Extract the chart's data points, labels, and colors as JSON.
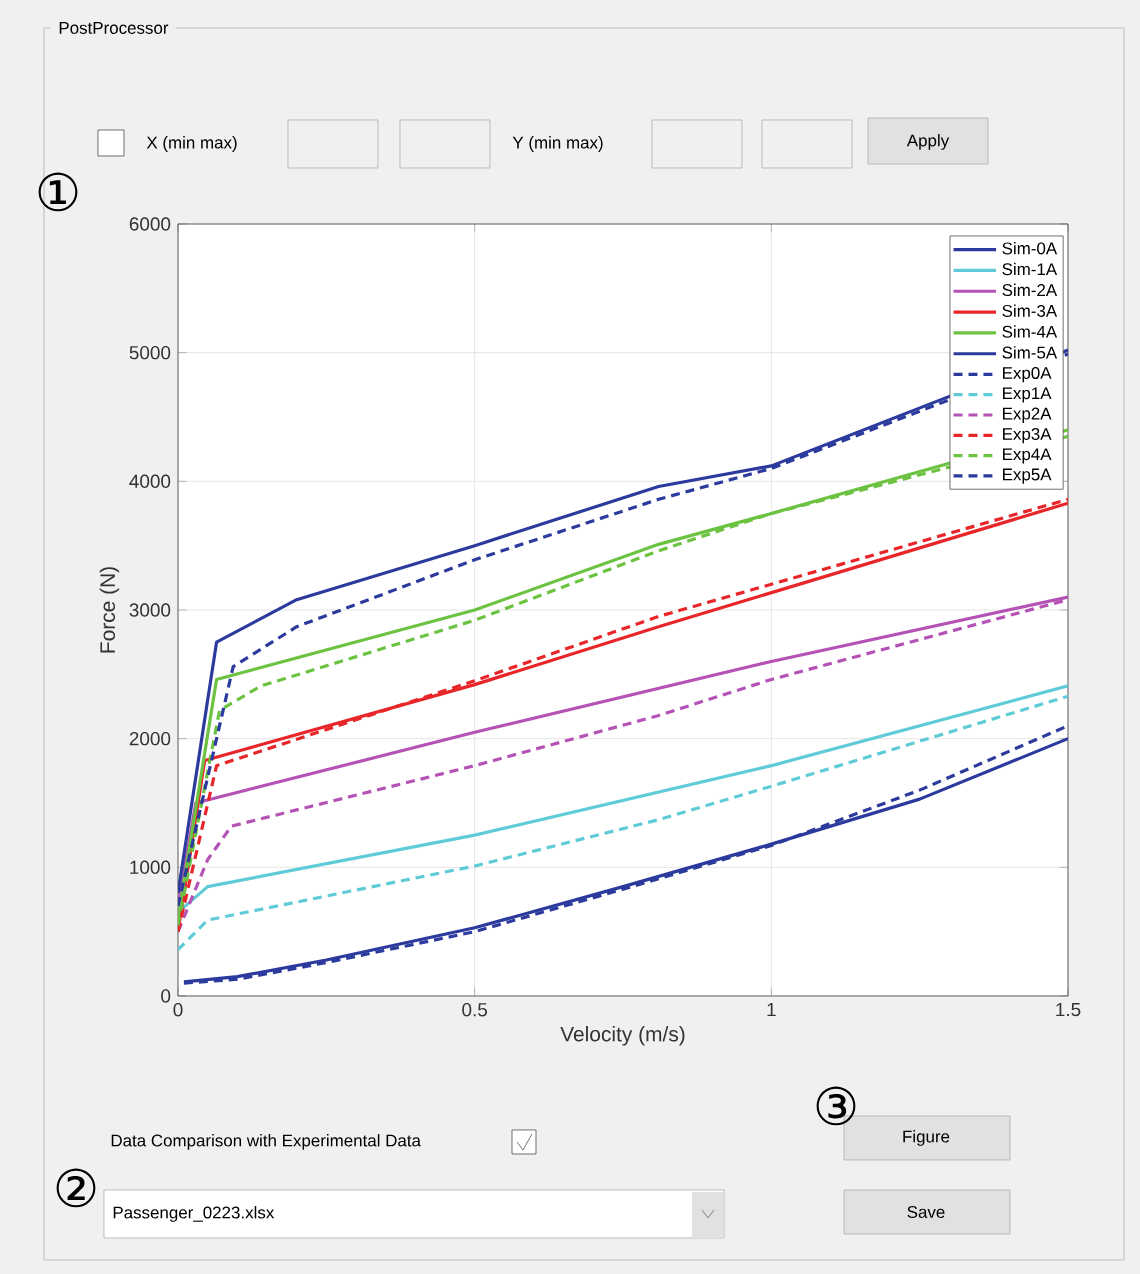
{
  "chart_data": {
    "type": "line",
    "xlabel": "Velocity (m/s)",
    "ylabel": "Force (N)",
    "xlim": [
      0,
      1.5
    ],
    "ylim": [
      0,
      6000
    ],
    "xticks": [
      0,
      0.5,
      1,
      1.5
    ],
    "yticks": [
      0,
      1000,
      2000,
      3000,
      4000,
      5000,
      6000
    ],
    "grid": true,
    "legend": "top right",
    "marker": "none",
    "series": [
      {
        "name": "Sim-0A",
        "color": "#2b3a9c",
        "line_style": "solid",
        "x": [
          0.01,
          0.1,
          0.25,
          0.5,
          0.75,
          1.0,
          1.25,
          1.5
        ],
        "values": [
          110,
          150,
          280,
          530,
          850,
          1180,
          1530,
          2000
        ]
      },
      {
        "name": "Sim-1A",
        "color": "#5fcbd6",
        "line_style": "solid",
        "x": [
          0,
          0.05,
          0.5,
          1.0,
          1.5
        ],
        "values": [
          650,
          850,
          1250,
          1790,
          2410
        ]
      },
      {
        "name": "Sim-2A",
        "color": "#b552b5",
        "line_style": "solid",
        "x": [
          0,
          0.03,
          0.5,
          1.0,
          1.5
        ],
        "values": [
          700,
          1500,
          2050,
          2600,
          3100
        ]
      },
      {
        "name": "Sim-3A",
        "color": "#e8262a",
        "line_style": "solid",
        "x": [
          0,
          0.045,
          0.5,
          0.81,
          1.5
        ],
        "values": [
          500,
          1830,
          2420,
          2870,
          3830
        ]
      },
      {
        "name": "Sim-4A",
        "color": "#6cc241",
        "line_style": "solid",
        "x": [
          0,
          0.065,
          0.5,
          0.81,
          1.0,
          1.5
        ],
        "values": [
          600,
          2460,
          3000,
          3510,
          3750,
          4400
        ]
      },
      {
        "name": "Sim-5A",
        "color": "#2b3a9c",
        "line_style": "solid",
        "x": [
          0,
          0.065,
          0.2,
          0.5,
          0.81,
          1.0,
          1.5
        ],
        "values": [
          800,
          2750,
          3080,
          3500,
          3960,
          4120,
          5020
        ]
      },
      {
        "name": "Exp0A",
        "color": "#2b3a9c",
        "line_style": "dashed",
        "x": [
          0.01,
          0.1,
          0.25,
          0.5,
          0.75,
          1.0,
          1.25,
          1.5
        ],
        "values": [
          100,
          130,
          260,
          500,
          830,
          1170,
          1600,
          2100
        ]
      },
      {
        "name": "Exp1A",
        "color": "#5fcbd6",
        "line_style": "dashed",
        "x": [
          0,
          0.05,
          0.5,
          0.81,
          1.0,
          1.5
        ],
        "values": [
          360,
          590,
          1010,
          1370,
          1630,
          2330
        ]
      },
      {
        "name": "Exp2A",
        "color": "#b552b5",
        "line_style": "dashed",
        "x": [
          0,
          0.05,
          0.09,
          0.5,
          0.81,
          1.0,
          1.5
        ],
        "values": [
          500,
          1060,
          1320,
          1790,
          2180,
          2460,
          3080
        ]
      },
      {
        "name": "Exp3A",
        "color": "#e8262a",
        "line_style": "dashed",
        "x": [
          0,
          0.065,
          0.5,
          0.81,
          1.0,
          1.5
        ],
        "values": [
          500,
          1790,
          2450,
          2950,
          3200,
          3860
        ]
      },
      {
        "name": "Exp4A",
        "color": "#6cc241",
        "line_style": "dashed",
        "x": [
          0,
          0.07,
          0.14,
          0.5,
          0.81,
          1.0,
          1.5
        ],
        "values": [
          550,
          2220,
          2410,
          2920,
          3460,
          3750,
          4350
        ]
      },
      {
        "name": "Exp5A",
        "color": "#2b3a9c",
        "line_style": "dashed",
        "x": [
          0,
          0.093,
          0.2,
          0.5,
          0.81,
          1.0,
          1.5
        ],
        "values": [
          700,
          2560,
          2870,
          3390,
          3860,
          4100,
          4990
        ]
      }
    ],
    "annotations": [
      "PostProcessor",
      "X (min max)",
      "Y (min max)",
      "Apply",
      "①",
      "Data Comparison with Experimental Data",
      "②",
      "Passenger_0223.xlsx",
      "③",
      "Figure",
      "Save"
    ]
  }
}
